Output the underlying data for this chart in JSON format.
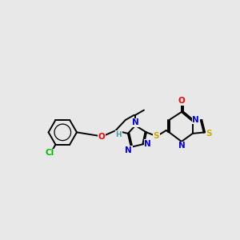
{
  "background_color": "#e8e8e8",
  "bond_color": "#000000",
  "atom_colors": {
    "Cl": "#00bb00",
    "O": "#ff0000",
    "N": "#0000ee",
    "S": "#ccaa00",
    "C": "#000000",
    "H": "#4a9ea0"
  },
  "figsize": [
    3.0,
    3.0
  ],
  "dpi": 100
}
